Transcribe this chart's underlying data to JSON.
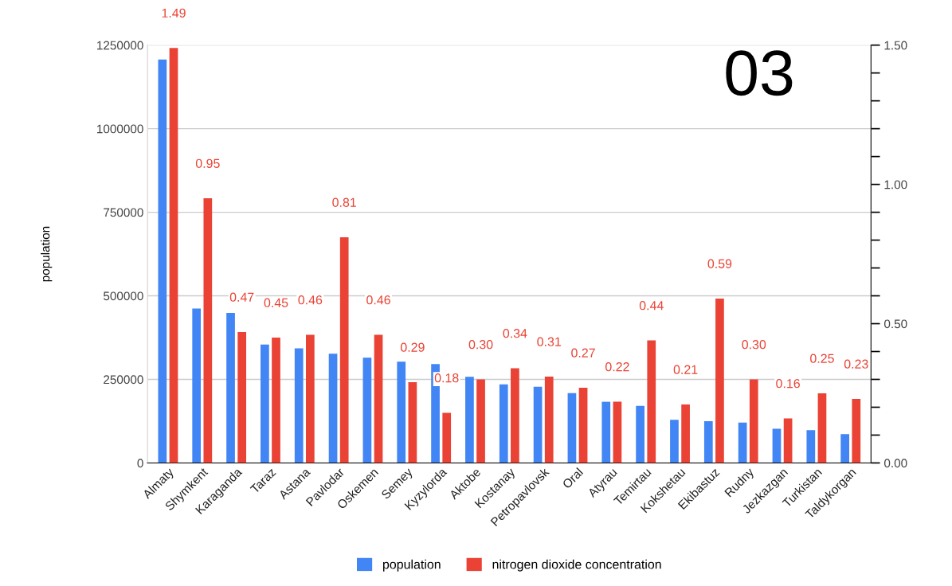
{
  "chart_data": {
    "type": "bar",
    "categories": [
      "Almaty",
      "Shymkent",
      "Karaganda",
      "Taraz",
      "Astana",
      "Pavlodar",
      "Oskemen",
      "Semey",
      "Kyzylorda",
      "Aktobe",
      "Kostanay",
      "Petropavlovsk",
      "Oral",
      "Atyrau",
      "Temirtau",
      "Kokshetau",
      "Ekibastuz",
      "Rudny",
      "Jezkazgan",
      "Turkistan",
      "Taldykorgan"
    ],
    "series": [
      {
        "name": "population",
        "color": "#4285f4",
        "values": [
          1207000,
          462000,
          449000,
          354000,
          343000,
          327000,
          315000,
          303000,
          296000,
          258000,
          235000,
          228000,
          209000,
          183000,
          171000,
          129000,
          125000,
          121000,
          102000,
          98000,
          86000
        ]
      },
      {
        "name": "nitrogen dioxide concentration",
        "color": "#ea4335",
        "axis": "y2",
        "values": [
          1.49,
          0.95,
          0.47,
          0.45,
          0.46,
          0.81,
          0.46,
          0.29,
          0.18,
          0.3,
          0.34,
          0.31,
          0.27,
          0.22,
          0.44,
          0.21,
          0.59,
          0.3,
          0.16,
          0.25,
          0.23
        ],
        "value_labels": [
          "1.49",
          "0.95",
          "0.47",
          "0.45",
          "0.46",
          "0.81",
          "0.46",
          "0.29",
          "0.18",
          "0.30",
          "0.34",
          "0.31",
          "0.27",
          "0.22",
          "0.44",
          "0.21",
          "0.59",
          "0.30",
          "0.16",
          "0.25",
          "0.23"
        ]
      }
    ],
    "ylabel": "population",
    "ylim": [
      0,
      1250000
    ],
    "yticks": [
      0,
      250000,
      500000,
      750000,
      1000000,
      1250000
    ],
    "y2lim": [
      0,
      1.5
    ],
    "y2ticks": [
      {
        "value": 0,
        "label": "0.00"
      },
      {
        "value": 0.1,
        "label": null
      },
      {
        "value": 0.2,
        "label": null
      },
      {
        "value": 0.3,
        "label": null
      },
      {
        "value": 0.4,
        "label": null
      },
      {
        "value": 0.5,
        "label": "0.50"
      },
      {
        "value": 0.6,
        "label": null
      },
      {
        "value": 0.7,
        "label": null
      },
      {
        "value": 0.8,
        "label": null
      },
      {
        "value": 0.9,
        "label": null
      },
      {
        "value": 1.0,
        "label": "1.00"
      },
      {
        "value": 1.1,
        "label": null
      },
      {
        "value": 1.2,
        "label": null
      },
      {
        "value": 1.3,
        "label": null
      },
      {
        "value": 1.4,
        "label": null
      },
      {
        "value": 1.5,
        "label": "1.50"
      }
    ],
    "annotations": [
      "03"
    ],
    "grid": "y",
    "legend": "bottom"
  }
}
